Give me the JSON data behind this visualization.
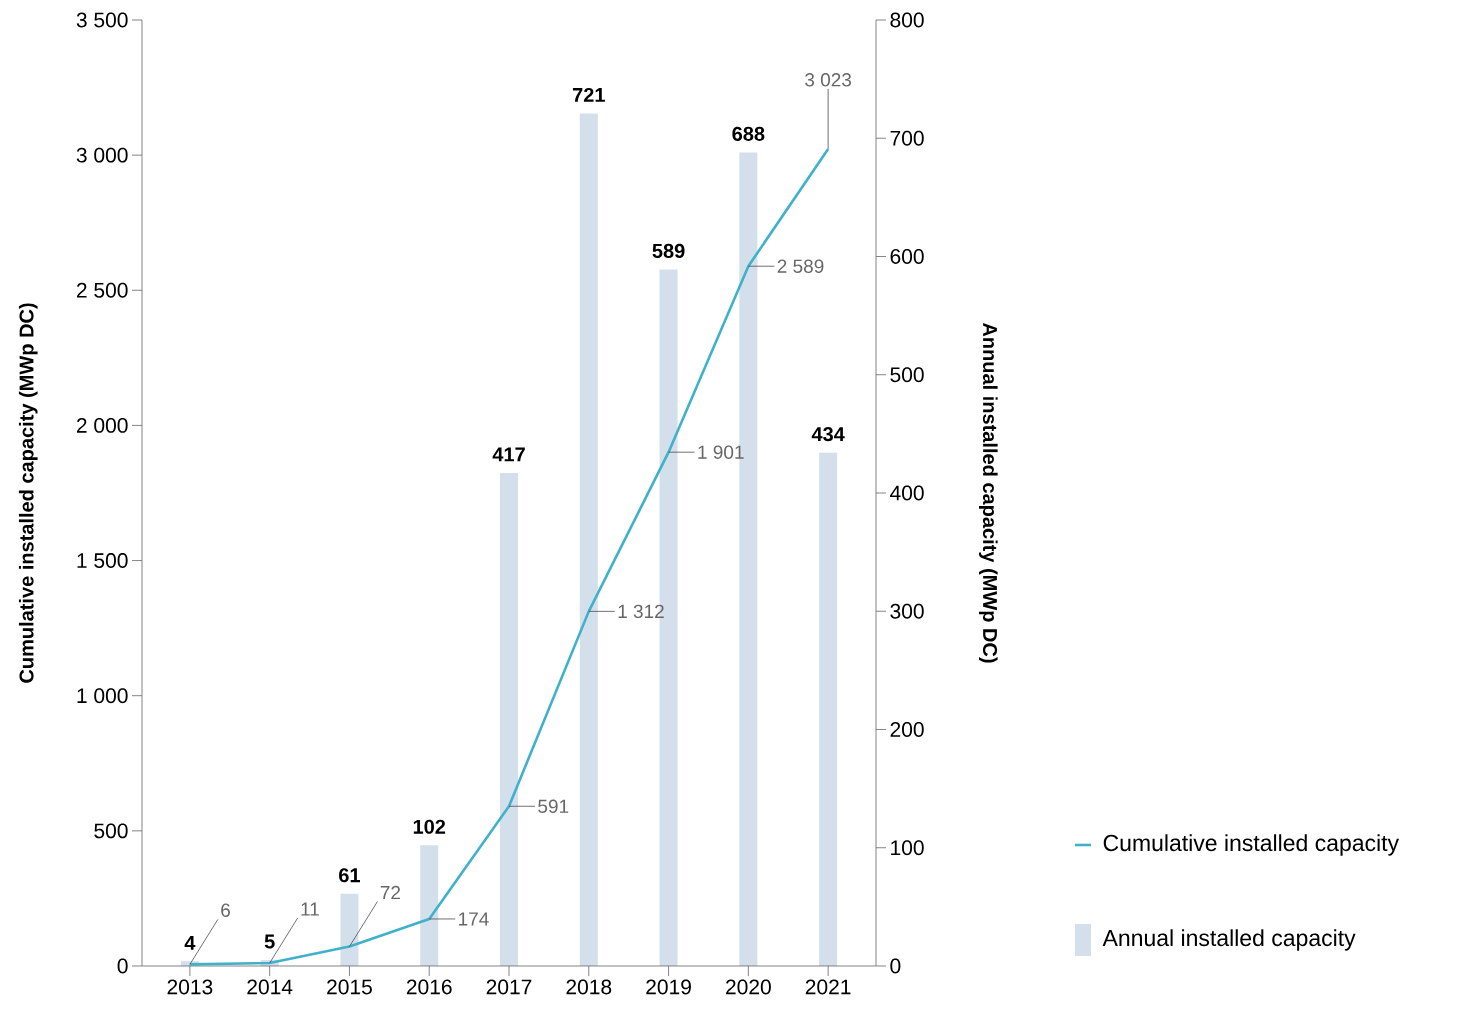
{
  "chart_data": {
    "type": "line",
    "ylabel": "Cumulative installed capacity (MWp DC)",
    "y2label": "Annual installed capacity (MWp DC)",
    "categories": [
      "2013",
      "2014",
      "2015",
      "2016",
      "2017",
      "2018",
      "2019",
      "2020",
      "2021"
    ],
    "series": [
      {
        "name": "Cumulative installed capacity",
        "color": "#3fb1cb",
        "values": [
          6,
          11,
          72,
          174,
          591,
          1312,
          1901,
          2589,
          3023
        ],
        "value_labels": [
          "6",
          "11",
          "72",
          "174",
          "591",
          "1 312",
          "1 901",
          "2 589",
          "3 023"
        ]
      },
      {
        "name": "Annual installed capacity",
        "type": "bar",
        "axis": "y2",
        "color": "#d3dfea",
        "values": [
          4,
          5,
          61,
          102,
          417,
          721,
          589,
          688,
          434
        ],
        "value_labels": [
          "4",
          "5",
          "61",
          "102",
          "417",
          "721",
          "589",
          "688",
          "434"
        ]
      }
    ],
    "ylim": [
      0,
      3500
    ],
    "yticks": [
      0,
      500,
      {
        "value": 1000,
        "label": "1 000"
      },
      {
        "value": 1500,
        "label": "1 500"
      },
      {
        "value": 2000,
        "label": "2 000"
      },
      {
        "value": 2500,
        "label": "2 500"
      },
      {
        "value": 3000,
        "label": "3 000"
      },
      {
        "value": 3500,
        "label": "3 500"
      }
    ],
    "y2lim": [
      0,
      800
    ],
    "y2ticks": [
      0,
      100,
      200,
      300,
      400,
      500,
      600,
      700,
      800
    ],
    "legend": "bottom right",
    "grid": false
  }
}
